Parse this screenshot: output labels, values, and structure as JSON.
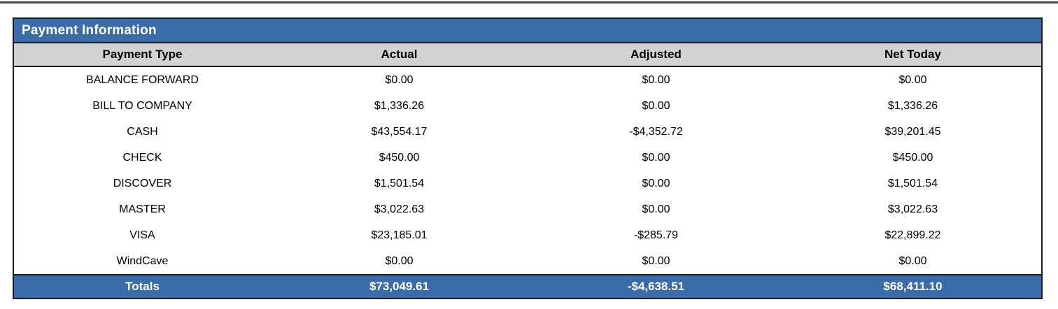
{
  "colors": {
    "header_blue": "#3A6CA9",
    "header_gray": "#D2D2D2",
    "border_dark": "#1B1B26",
    "top_rule_gray": "#454545",
    "text_black": "#000000",
    "text_white": "#FFFFFF"
  },
  "report": {
    "title": "Payment Information",
    "columns": [
      "Payment Type",
      "Actual",
      "Adjusted",
      "Net Today"
    ],
    "rows": [
      {
        "type": "BALANCE FORWARD",
        "actual": "$0.00",
        "adjusted": "$0.00",
        "net": "$0.00"
      },
      {
        "type": "BILL TO COMPANY",
        "actual": "$1,336.26",
        "adjusted": "$0.00",
        "net": "$1,336.26"
      },
      {
        "type": "CASH",
        "actual": "$43,554.17",
        "adjusted": "-$4,352.72",
        "net": "$39,201.45"
      },
      {
        "type": "CHECK",
        "actual": "$450.00",
        "adjusted": "$0.00",
        "net": "$450.00"
      },
      {
        "type": "DISCOVER",
        "actual": "$1,501.54",
        "adjusted": "$0.00",
        "net": "$1,501.54"
      },
      {
        "type": "MASTER",
        "actual": "$3,022.63",
        "adjusted": "$0.00",
        "net": "$3,022.63"
      },
      {
        "type": "VISA",
        "actual": "$23,185.01",
        "adjusted": "-$285.79",
        "net": "$22,899.22"
      },
      {
        "type": "WindCave",
        "actual": "$0.00",
        "adjusted": "$0.00",
        "net": "$0.00"
      }
    ],
    "totals": {
      "label": "Totals",
      "actual": "$73,049.61",
      "adjusted": "-$4,638.51",
      "net": "$68,411.10"
    }
  }
}
